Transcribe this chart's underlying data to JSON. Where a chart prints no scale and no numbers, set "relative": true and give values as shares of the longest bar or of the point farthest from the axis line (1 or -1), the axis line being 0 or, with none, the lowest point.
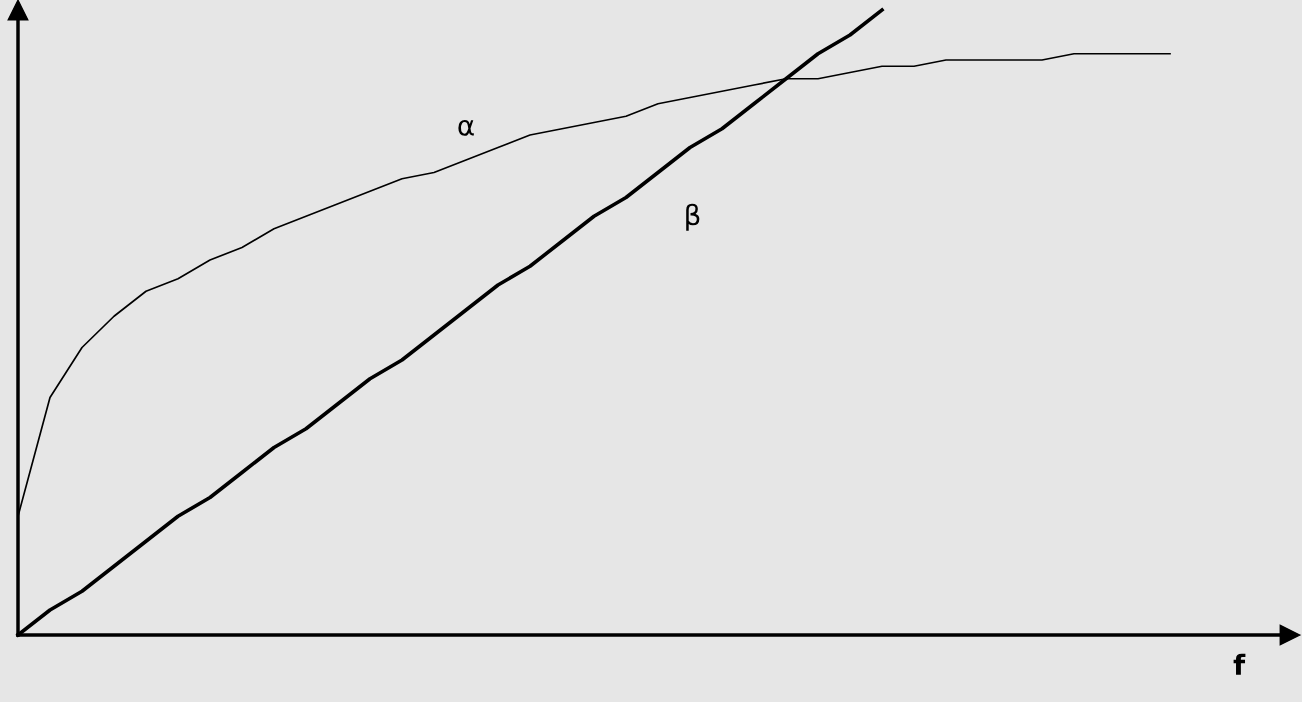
{
  "chart_data": {
    "type": "line",
    "relative": true,
    "xlabel": "f",
    "legend": false,
    "tick_labels": false,
    "categories": [
      null,
      null,
      null,
      null,
      null,
      null,
      null,
      null,
      null,
      null,
      null,
      null,
      null,
      null,
      null,
      null,
      null,
      null,
      null,
      null,
      null,
      null,
      null,
      null,
      null,
      null,
      null,
      null,
      null,
      null,
      null,
      null,
      null,
      null,
      null,
      null,
      null
    ],
    "series": [
      {
        "name": "α",
        "color": "#000000",
        "values": [
          0.19,
          0.38,
          0.46,
          0.51,
          0.55,
          0.57,
          0.6,
          0.62,
          0.65,
          0.67,
          0.69,
          0.71,
          0.73,
          0.74,
          0.76,
          0.78,
          0.8,
          0.81,
          0.82,
          0.83,
          0.85,
          0.86,
          0.87,
          0.88,
          0.89,
          0.89,
          0.9,
          0.91,
          0.91,
          0.92,
          0.92,
          0.92,
          0.92,
          0.93,
          0.93,
          0.93,
          0.93
        ]
      },
      {
        "name": "β",
        "color": "#000000",
        "values": [
          0,
          0.04,
          0.07,
          0.11,
          0.15,
          0.19,
          0.22,
          0.26,
          0.3,
          0.33,
          0.37,
          0.41,
          0.44,
          0.48,
          0.52,
          0.56,
          0.59,
          0.63,
          0.67,
          0.7,
          0.74,
          0.78,
          0.81,
          0.85,
          0.89,
          0.93,
          0.96,
          1.0,
          null,
          null,
          null,
          null,
          null,
          null,
          null,
          null,
          null
        ]
      }
    ]
  }
}
